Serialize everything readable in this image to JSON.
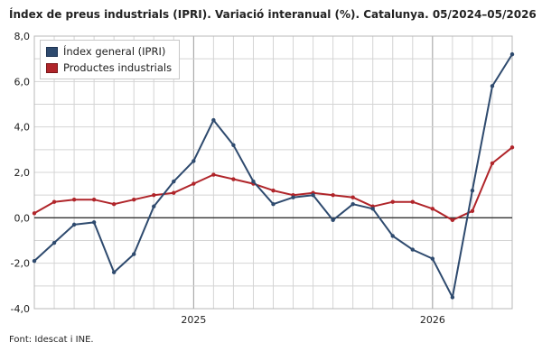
{
  "title": "Índex de preus industrials (IPRI). Variació interanual (%). Catalunya. 05/2024–05/2026",
  "source": "Font: Idescat i INE.",
  "colors": {
    "general": "#2e4a6e",
    "industrial": "#b0252a",
    "grid": "#d4d4d4",
    "zero": "#333333"
  },
  "chart_data": {
    "type": "line",
    "x": [
      "2024-05",
      "2024-06",
      "2024-07",
      "2024-08",
      "2024-09",
      "2024-10",
      "2024-11",
      "2024-12",
      "2025-01",
      "2025-02",
      "2025-03",
      "2025-04",
      "2025-05",
      "2025-06",
      "2025-07",
      "2025-08",
      "2025-09",
      "2025-10",
      "2025-11",
      "2025-12",
      "2026-01",
      "2026-02",
      "2026-03",
      "2026-04",
      "2026-05"
    ],
    "x_tick_labels": [
      "2025",
      "2026"
    ],
    "y_tick_labels": [
      "8,0",
      "6,0",
      "4,0",
      "2,0",
      "0,0",
      "-2,0",
      "-4,0"
    ],
    "ylim": [
      -4,
      8
    ],
    "grid": true,
    "legend_position": "top-left",
    "series": [
      {
        "name": "Índex general (IPRI)",
        "values": [
          -1.9,
          -1.1,
          -0.3,
          -0.2,
          -2.4,
          -1.6,
          0.5,
          1.6,
          2.5,
          4.3,
          3.2,
          1.6,
          0.6,
          0.9,
          1.0,
          -0.1,
          0.6,
          0.4,
          -0.8,
          -1.4,
          -1.8,
          -3.5,
          1.2,
          5.8,
          7.2
        ]
      },
      {
        "name": "Productes industrials",
        "values": [
          0.2,
          0.7,
          0.8,
          0.8,
          0.6,
          0.8,
          1.0,
          1.1,
          1.5,
          1.9,
          1.7,
          1.5,
          1.2,
          1.0,
          1.1,
          1.0,
          0.9,
          0.5,
          0.7,
          0.7,
          0.4,
          -0.1,
          0.3,
          2.4,
          3.1
        ]
      }
    ]
  }
}
